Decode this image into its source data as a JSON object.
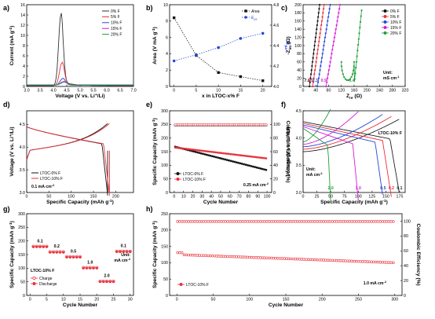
{
  "chart_data": [
    {
      "panel": "a",
      "type": "line",
      "xlabel": "Voltage (V vs. Li+/Li)",
      "ylabel": "Current (mA g-1)",
      "xlim": [
        3.0,
        7.0
      ],
      "ylim": [
        0,
        16
      ],
      "xticks": [
        "3.0",
        "3.5",
        "4.0",
        "4.5",
        "5.0",
        "5.5",
        "6.0",
        "6.5",
        "7.0"
      ],
      "yticks": [
        "0",
        "2",
        "4",
        "6",
        "8",
        "10",
        "12",
        "14",
        "16"
      ],
      "legend_position": "top-right",
      "series": [
        {
          "name": "0% F",
          "color": "#333333",
          "peak_x": 4.28,
          "peak_y": 13.8
        },
        {
          "name": "5% F",
          "color": "#e8303a",
          "peak_x": 4.32,
          "peak_y": 4.4
        },
        {
          "name": "10% F",
          "color": "#2446d8",
          "peak_x": 4.35,
          "peak_y": 1.3
        },
        {
          "name": "15% F",
          "color": "#d81ad8",
          "peak_x": 4.38,
          "peak_y": 0.7
        },
        {
          "name": "20% F",
          "color": "#1f9e3a",
          "peak_x": 4.4,
          "peak_y": 0.5
        }
      ]
    },
    {
      "panel": "b",
      "type": "line",
      "xlabel": "x in LTOC-x% F",
      "ylabel": "Area (V mA g-1)",
      "ylabel_right": "Epa",
      "xlim": [
        -1,
        22
      ],
      "ylim": [
        0,
        10
      ],
      "y2lim": [
        4.0,
        4.8
      ],
      "xticks": [
        "0",
        "5",
        "10",
        "15",
        "20"
      ],
      "yticks": [
        "0",
        "2",
        "4",
        "6",
        "8",
        "10"
      ],
      "y2ticks": [
        "4.0",
        "4.2",
        "4.4",
        "4.6",
        "4.8"
      ],
      "series": [
        {
          "name": "Area",
          "color": "#111111",
          "x": [
            0,
            5,
            10,
            15,
            20
          ],
          "values": [
            8.4,
            3.8,
            1.7,
            1.2,
            0.7
          ]
        },
        {
          "name": "Epa",
          "color": "#2446d8",
          "x": [
            0,
            5,
            10,
            15,
            20
          ],
          "values": [
            4.25,
            4.31,
            4.38,
            4.47,
            4.52
          ]
        }
      ]
    },
    {
      "panel": "c",
      "type": "scatter",
      "xlabel": "Zre (Ω)",
      "ylabel": "-Zim (Ω)",
      "xlim": [
        0,
        320
      ],
      "ylim": [
        0,
        200
      ],
      "xticks": [
        "0",
        "40",
        "80",
        "120",
        "160",
        "200",
        "240",
        "280",
        "320"
      ],
      "yticks": [
        "0",
        "20",
        "40",
        "60",
        "80",
        "100",
        "120",
        "140",
        "160",
        "180",
        "200"
      ],
      "unit_label": "Unit: mS cm-1",
      "series": [
        {
          "name": "0% F",
          "color": "#111111",
          "conductivity": "7.1",
          "x0": 20
        },
        {
          "name": "5% F",
          "color": "#e8303a",
          "conductivity": "4.5",
          "x0": 30
        },
        {
          "name": "10% F",
          "color": "#2446d8",
          "conductivity": "2.3",
          "x0": 45
        },
        {
          "name": "15% F",
          "color": "#d81ad8",
          "conductivity": "0.9",
          "x0": 72
        },
        {
          "name": "20% F",
          "color": "#1f9e3a",
          "conductivity": "0.4",
          "x0": 160
        }
      ]
    },
    {
      "panel": "d",
      "type": "line",
      "xlabel": "Specific Capacity (mAh g-1)",
      "ylabel": "Voltage (V vs. Li+/Li)",
      "xlim": [
        0,
        240
      ],
      "ylim": [
        3.0,
        4.8
      ],
      "xticks": [
        "0",
        "50",
        "100",
        "150",
        "200"
      ],
      "yticks": [
        "3.0",
        "3.5",
        "4.0",
        "4.5"
      ],
      "annotation": "0.1 mA cm-2",
      "series": [
        {
          "name": "LTOC-0% F",
          "color": "#111111"
        },
        {
          "name": "LTOC-10% F",
          "color": "#e8303a"
        }
      ]
    },
    {
      "panel": "e",
      "type": "scatter",
      "xlabel": "Cycle Number",
      "ylabel": "Specific Capacity (mAh g-1)",
      "ylabel_right": "Coulombic Efficiency (%)",
      "xlim": [
        -5,
        105
      ],
      "ylim": [
        0,
        300
      ],
      "y2lim": [
        0,
        120
      ],
      "xticks": [
        "0",
        "10",
        "20",
        "30",
        "40",
        "50",
        "60",
        "70",
        "80",
        "90",
        "100"
      ],
      "yticks": [
        "0",
        "50",
        "100",
        "150",
        "200",
        "250",
        "300"
      ],
      "y2ticks": [
        "0",
        "20",
        "40",
        "60",
        "80",
        "100"
      ],
      "annotation": "0.25 mA cm-2",
      "series": [
        {
          "name": "LTOC-0% F",
          "color": "#111111",
          "capacity_start": 168,
          "capacity_end": 82,
          "ce": 99
        },
        {
          "name": "LTOC-10% F",
          "color": "#e8303a",
          "capacity_start": 165,
          "capacity_end": 125,
          "ce": 99.5
        }
      ]
    },
    {
      "panel": "f",
      "type": "line",
      "xlabel": "Specific Capacity (mAh g-1)",
      "ylabel": "Voltage (V vs. Li+/Li)",
      "xlim": [
        0,
        185
      ],
      "ylim": [
        3.0,
        4.5
      ],
      "xticks": [
        "0",
        "25",
        "50",
        "75",
        "100",
        "125",
        "150",
        "175"
      ],
      "yticks": [
        "3.0",
        "3.5",
        "4.0",
        "4.5"
      ],
      "sample_label": "LTOC-10% F",
      "unit_label": "Unit: mA cm-2",
      "series": [
        {
          "name": "0.1",
          "color": "#222222",
          "capacity": 175
        },
        {
          "name": "0.2",
          "color": "#e8303a",
          "capacity": 160
        },
        {
          "name": "0.5",
          "color": "#2446d8",
          "capacity": 145
        },
        {
          "name": "1.0",
          "color": "#d81ad8",
          "capacity": 100
        },
        {
          "name": "2.0",
          "color": "#1f9e3a",
          "capacity": 50
        }
      ]
    },
    {
      "panel": "g",
      "type": "scatter",
      "xlabel": "Cycle Number",
      "ylabel": "Specific Capacity (mAh g-1)",
      "xlim": [
        -1,
        31
      ],
      "ylim": [
        0,
        300
      ],
      "xticks": [
        "0",
        "5",
        "10",
        "15",
        "20",
        "25",
        "30"
      ],
      "yticks": [
        "0",
        "50",
        "100",
        "150",
        "200",
        "250",
        "300"
      ],
      "sample_label": "LTOC-10% F",
      "unit_label": "Unit: mA cm-2",
      "rates": [
        {
          "label": "0.1",
          "cycles": [
            1,
            5
          ],
          "capacity": 178
        },
        {
          "label": "0.2",
          "cycles": [
            6,
            10
          ],
          "capacity": 158
        },
        {
          "label": "0.5",
          "cycles": [
            11,
            15
          ],
          "capacity": 140
        },
        {
          "label": "1.0",
          "cycles": [
            16,
            20
          ],
          "capacity": 100
        },
        {
          "label": "2.0",
          "cycles": [
            21,
            25
          ],
          "capacity": 50
        },
        {
          "label": "0.1",
          "cycles": [
            26,
            30
          ],
          "capacity": 160
        }
      ],
      "series": [
        {
          "name": "Charge",
          "color": "#e8303a",
          "filled": false
        },
        {
          "name": "Discharge",
          "color": "#e8303a",
          "filled": true
        }
      ]
    },
    {
      "panel": "h",
      "type": "scatter",
      "xlabel": "Cycle Number",
      "ylabel": "Specific Capacity (mAh g-1)",
      "ylabel_right": "Coulombic Efficiency (%)",
      "xlim": [
        -10,
        310
      ],
      "ylim": [
        0,
        250
      ],
      "y2lim": [
        0,
        110
      ],
      "xticks": [
        "0",
        "50",
        "100",
        "150",
        "200",
        "250",
        "300"
      ],
      "yticks": [
        "0",
        "50",
        "100",
        "150",
        "200",
        "250"
      ],
      "y2ticks": [
        "0",
        "20",
        "40",
        "60",
        "80",
        "100"
      ],
      "annotation": "1.0 mA cm-2",
      "series": [
        {
          "name": "LTOC-10% F",
          "color": "#e8303a",
          "capacity_start": 125,
          "capacity_end": 100,
          "ce": 99.5
        }
      ]
    }
  ]
}
